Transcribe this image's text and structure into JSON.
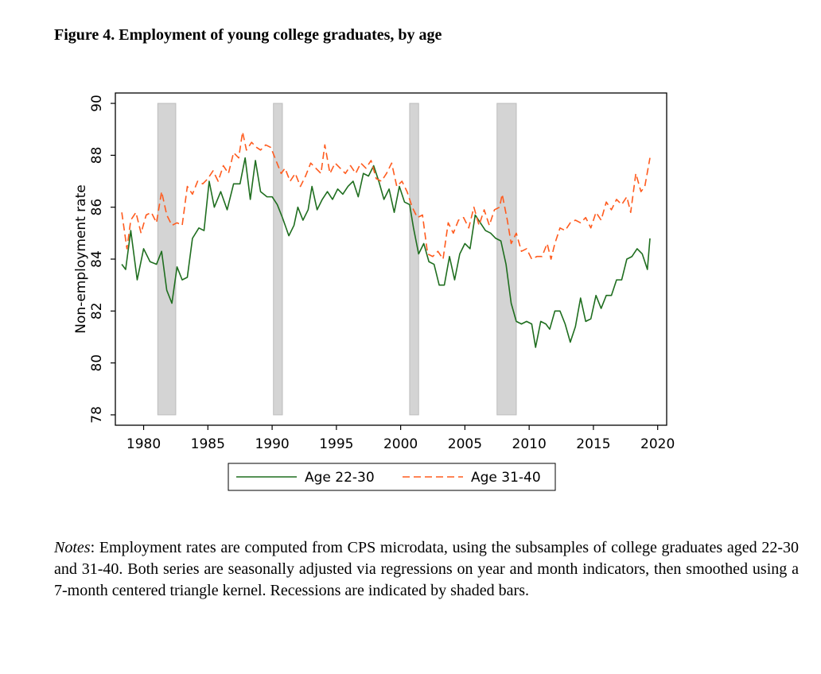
{
  "chart_data": {
    "type": "line",
    "title": "Figure 4. Employment of young college graduates, by age",
    "y_label": "Non-employment rate",
    "xlim": [
      1977.8,
      2020.7
    ],
    "ylim": [
      77.6,
      90.4
    ],
    "xticks": [
      1980,
      1985,
      1990,
      1995,
      2000,
      2005,
      2010,
      2015,
      2020
    ],
    "yticks": [
      78,
      80,
      82,
      84,
      86,
      88,
      90
    ],
    "recession_color": "#d4d4d4",
    "recessions": [
      {
        "start": 1981.1,
        "end": 1982.5
      },
      {
        "start": 1990.1,
        "end": 1990.8
      },
      {
        "start": 2000.7,
        "end": 2001.4
      },
      {
        "start": 2007.5,
        "end": 2009.0
      }
    ],
    "series": [
      {
        "name": "Age 22-30",
        "color": "#1f6e1f",
        "dash": "solid",
        "x": [
          1978.3,
          1978.6,
          1979.0,
          1979.5,
          1980.0,
          1980.5,
          1981.0,
          1981.4,
          1981.8,
          1982.2,
          1982.6,
          1983.0,
          1983.4,
          1983.8,
          1984.3,
          1984.7,
          1985.1,
          1985.5,
          1986.0,
          1986.5,
          1987.0,
          1987.5,
          1987.9,
          1988.3,
          1988.7,
          1989.1,
          1989.6,
          1990.0,
          1990.4,
          1990.8,
          1991.3,
          1991.7,
          1992.0,
          1992.4,
          1992.8,
          1993.1,
          1993.5,
          1993.9,
          1994.3,
          1994.7,
          1995.1,
          1995.5,
          1995.9,
          1996.3,
          1996.7,
          1997.1,
          1997.5,
          1997.9,
          1998.3,
          1998.7,
          1999.1,
          1999.5,
          1999.9,
          2000.3,
          2000.7,
          2001.0,
          2001.4,
          2001.8,
          2002.2,
          2002.6,
          2003.0,
          2003.4,
          2003.8,
          2004.2,
          2004.6,
          2005.0,
          2005.4,
          2005.8,
          2006.2,
          2006.6,
          2007.0,
          2007.4,
          2007.8,
          2008.2,
          2008.6,
          2009.0,
          2009.4,
          2009.8,
          2010.2,
          2010.5,
          2010.9,
          2011.3,
          2011.6,
          2012.0,
          2012.4,
          2012.8,
          2013.2,
          2013.6,
          2014.0,
          2014.4,
          2014.8,
          2015.2,
          2015.6,
          2016.0,
          2016.4,
          2016.8,
          2017.2,
          2017.6,
          2018.0,
          2018.4,
          2018.8,
          2019.2,
          2019.4
        ],
        "values": [
          83.8,
          83.6,
          85.1,
          83.2,
          84.4,
          83.9,
          83.8,
          84.3,
          82.8,
          82.3,
          83.7,
          83.2,
          83.3,
          84.8,
          85.2,
          85.1,
          87.0,
          86.0,
          86.6,
          85.9,
          86.9,
          86.9,
          87.9,
          86.3,
          87.8,
          86.6,
          86.4,
          86.4,
          86.1,
          85.6,
          84.9,
          85.3,
          86.0,
          85.5,
          85.9,
          86.8,
          85.9,
          86.3,
          86.6,
          86.3,
          86.7,
          86.5,
          86.8,
          87.0,
          86.4,
          87.3,
          87.2,
          87.6,
          87.0,
          86.3,
          86.7,
          85.8,
          86.8,
          86.2,
          86.1,
          85.2,
          84.2,
          84.6,
          83.9,
          83.8,
          83.0,
          83.0,
          84.1,
          83.2,
          84.2,
          84.6,
          84.4,
          85.7,
          85.4,
          85.1,
          85.0,
          84.8,
          84.7,
          83.8,
          82.3,
          81.6,
          81.5,
          81.6,
          81.5,
          80.6,
          81.6,
          81.5,
          81.3,
          82.0,
          82.0,
          81.5,
          80.8,
          81.4,
          82.5,
          81.6,
          81.7,
          82.6,
          82.1,
          82.6,
          82.6,
          83.2,
          83.2,
          84.0,
          84.1,
          84.4,
          84.2,
          83.6,
          84.8
        ]
      },
      {
        "name": "Age 31-40",
        "color": "#ff5b1e",
        "dash": "dashed",
        "x": [
          1978.3,
          1978.7,
          1979.0,
          1979.4,
          1979.8,
          1980.2,
          1980.6,
          1981.0,
          1981.4,
          1981.8,
          1982.2,
          1982.6,
          1983.0,
          1983.4,
          1983.8,
          1984.2,
          1984.6,
          1985.0,
          1985.4,
          1985.8,
          1986.2,
          1986.6,
          1987.0,
          1987.4,
          1987.7,
          1988.0,
          1988.4,
          1988.8,
          1989.1,
          1989.5,
          1989.9,
          1990.3,
          1990.7,
          1991.0,
          1991.4,
          1991.8,
          1992.2,
          1992.6,
          1993.0,
          1993.4,
          1993.8,
          1994.1,
          1994.5,
          1994.9,
          1995.3,
          1995.7,
          1996.1,
          1996.5,
          1996.9,
          1997.3,
          1997.7,
          1998.1,
          1998.5,
          1998.9,
          1999.3,
          1999.7,
          2000.1,
          2000.5,
          2000.9,
          2001.3,
          2001.7,
          2002.1,
          2002.5,
          2002.9,
          2003.3,
          2003.7,
          2004.1,
          2004.5,
          2004.9,
          2005.3,
          2005.7,
          2006.1,
          2006.5,
          2006.9,
          2007.3,
          2007.7,
          2007.9,
          2008.3,
          2008.6,
          2009.0,
          2009.4,
          2009.8,
          2010.2,
          2010.6,
          2011.0,
          2011.4,
          2011.7,
          2012.0,
          2012.4,
          2012.8,
          2013.2,
          2013.6,
          2014.0,
          2014.4,
          2014.8,
          2015.2,
          2015.6,
          2016.0,
          2016.4,
          2016.8,
          2017.2,
          2017.6,
          2017.9,
          2018.3,
          2018.7,
          2019.0,
          2019.4
        ],
        "values": [
          85.8,
          84.4,
          85.5,
          85.8,
          85.0,
          85.7,
          85.8,
          85.4,
          86.6,
          85.7,
          85.3,
          85.4,
          85.3,
          86.8,
          86.5,
          87.0,
          86.9,
          87.1,
          87.4,
          87.0,
          87.6,
          87.3,
          88.1,
          87.9,
          88.9,
          88.2,
          88.5,
          88.3,
          88.2,
          88.4,
          88.3,
          87.8,
          87.3,
          87.5,
          87.0,
          87.3,
          86.8,
          87.2,
          87.7,
          87.5,
          87.3,
          88.4,
          87.3,
          87.7,
          87.5,
          87.3,
          87.6,
          87.3,
          87.7,
          87.5,
          87.8,
          87.1,
          87.0,
          87.3,
          87.7,
          86.8,
          87.0,
          86.6,
          86.0,
          85.6,
          85.7,
          84.2,
          84.1,
          84.3,
          84.0,
          85.4,
          85.0,
          85.5,
          85.6,
          85.2,
          86.0,
          85.3,
          85.9,
          85.3,
          85.9,
          86.0,
          86.5,
          85.5,
          84.6,
          85.0,
          84.3,
          84.4,
          84.0,
          84.1,
          84.1,
          84.6,
          84.0,
          84.6,
          85.2,
          85.1,
          85.4,
          85.5,
          85.4,
          85.6,
          85.2,
          85.8,
          85.5,
          86.2,
          85.9,
          86.3,
          86.1,
          86.4,
          85.8,
          87.3,
          86.6,
          86.8,
          87.9
        ]
      }
    ]
  },
  "notes": {
    "label": "Notes",
    "text": ": Employment rates are computed from CPS microdata, using the subsamples of college graduates aged 22-30 and 31-40. Both series are seasonally adjusted via regressions on year and month indicators, then smoothed using a 7-month centered triangle kernel. Recessions are indicated by shaded bars."
  }
}
